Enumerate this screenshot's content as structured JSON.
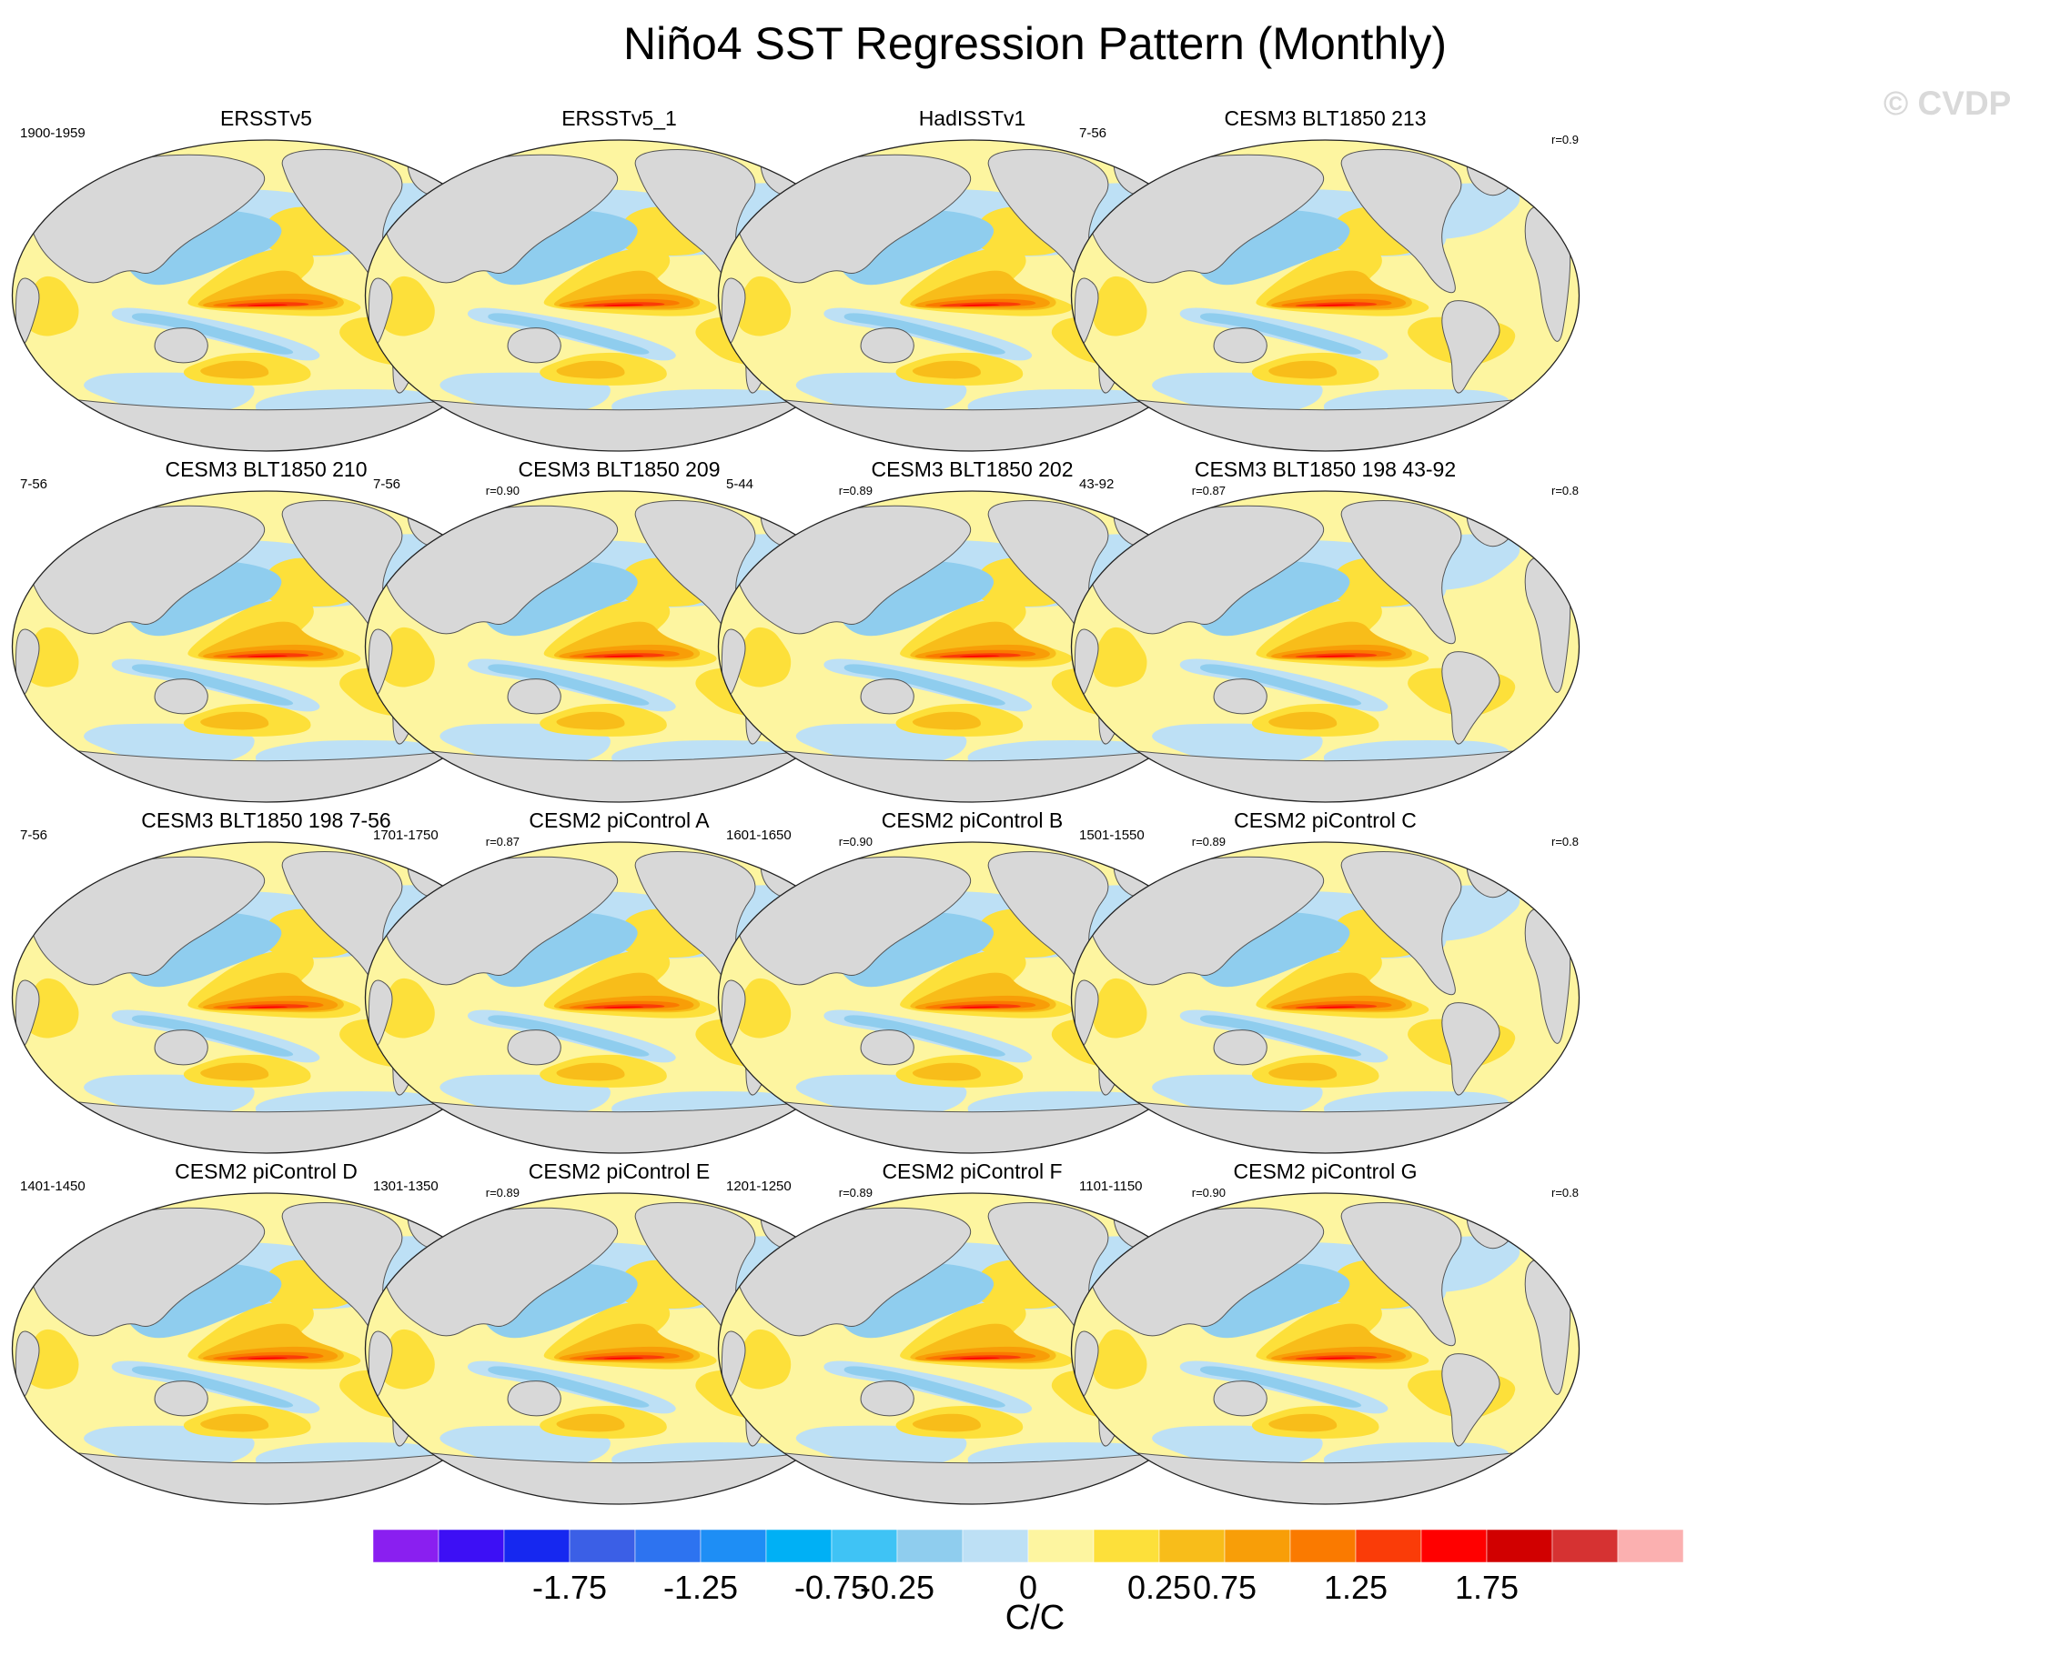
{
  "title": "Niño4 SST Regression Pattern (Monthly)",
  "watermark": "© CVDP",
  "panels": [
    {
      "name": "ERSSTv5",
      "period": "1900-1959",
      "corr": ""
    },
    {
      "name": "ERSSTv5_1",
      "period": "",
      "corr": ""
    },
    {
      "name": "HadISSTv1",
      "period": "",
      "corr": ""
    },
    {
      "name": "CESM3 BLT1850 213",
      "period": "7-56",
      "corr": "r=0.9"
    },
    {
      "name": "CESM3 BLT1850 210",
      "period": "7-56",
      "corr": "r=0.90"
    },
    {
      "name": "CESM3 BLT1850 209",
      "period": "7-56",
      "corr": "r=0.89"
    },
    {
      "name": "CESM3 BLT1850 202",
      "period": "5-44",
      "corr": "r=0.87"
    },
    {
      "name": "CESM3 BLT1850 198 43-92",
      "period": "43-92",
      "corr": "r=0.8"
    },
    {
      "name": "CESM3 BLT1850 198 7-56",
      "period": "7-56",
      "corr": "r=0.87"
    },
    {
      "name": "CESM2 piControl A",
      "period": "1701-1750",
      "corr": "r=0.90"
    },
    {
      "name": "CESM2 piControl B",
      "period": "1601-1650",
      "corr": "r=0.89"
    },
    {
      "name": "CESM2 piControl C",
      "period": "1501-1550",
      "corr": "r=0.8"
    },
    {
      "name": "CESM2 piControl D",
      "period": "1401-1450",
      "corr": "r=0.89"
    },
    {
      "name": "CESM2 piControl E",
      "period": "1301-1350",
      "corr": "r=0.89"
    },
    {
      "name": "CESM2 piControl F",
      "period": "1201-1250",
      "corr": "r=0.90"
    },
    {
      "name": "CESM2 piControl G",
      "period": "1101-1150",
      "corr": "r=0.8"
    }
  ],
  "colorbar": {
    "label": "C/C",
    "colors": [
      "#8a1ff0",
      "#3d0ff5",
      "#1628f0",
      "#3b5fe6",
      "#2d73f0",
      "#1e8ef5",
      "#00b0f5",
      "#3fc3f5",
      "#8fcdee",
      "#bde0f5",
      "#fdf5a0",
      "#fde03a",
      "#f8bd1a",
      "#f89e08",
      "#fa7a00",
      "#fa3c08",
      "#ff0000",
      "#d10000",
      "#d63232",
      "#fbb0b0"
    ],
    "tick_labels": [
      "-1.75",
      "-1.25",
      "-0.75",
      "-0.25",
      "0",
      "0.25",
      "0.75",
      "1.25",
      "1.75"
    ],
    "tick_values": [
      -1.75,
      -1.25,
      -0.75,
      -0.25,
      0,
      0.25,
      0.75,
      1.25,
      1.75
    ],
    "levels": [
      -2.0,
      -1.75,
      -1.5,
      -1.25,
      -1.0,
      -0.75,
      -0.5,
      -0.25,
      -0.1,
      0,
      0.1,
      0.25,
      0.5,
      0.75,
      1.0,
      1.25,
      1.5,
      1.75,
      2.0
    ]
  }
}
